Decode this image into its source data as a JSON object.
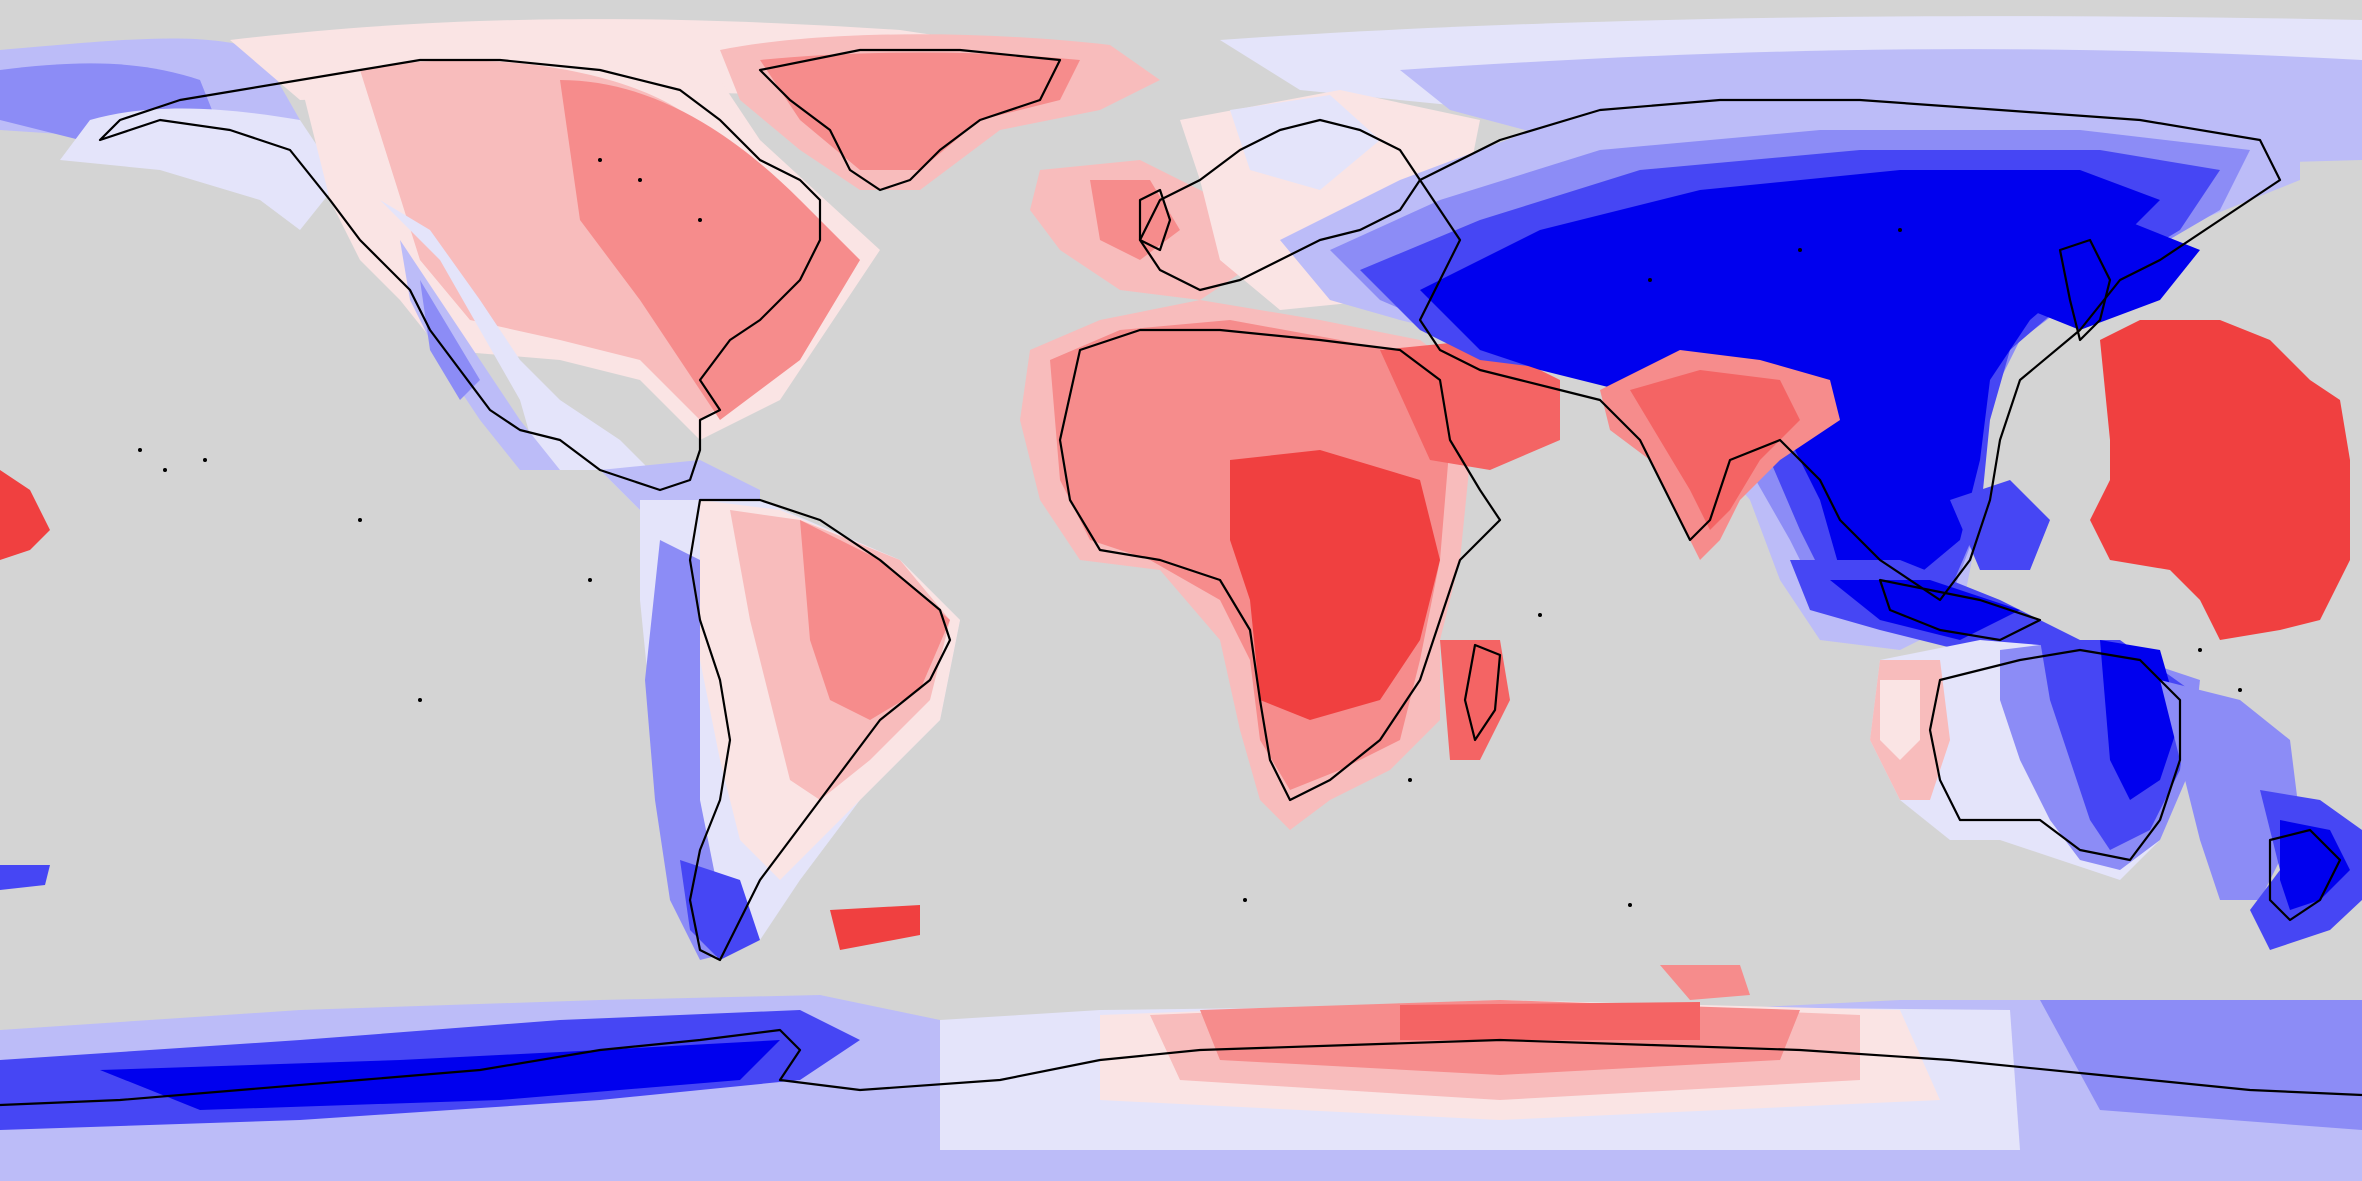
{
  "map": {
    "projection": "equirectangular",
    "background_color": "#d4d4d4",
    "coastline_color": "#000000",
    "diverging_scale": [
      "#0000ee",
      "#4646f4",
      "#8c8cf6",
      "#bcbcf8",
      "#e4e4fa",
      "#fae4e4",
      "#f8bcbc",
      "#f68c8c",
      "#f46464",
      "#f04040"
    ],
    "regions": [
      {
        "name": "north-america",
        "sign": "mixed"
      },
      {
        "name": "greenland",
        "sign": "positive"
      },
      {
        "name": "south-america",
        "sign": "mixed"
      },
      {
        "name": "africa",
        "sign": "positive"
      },
      {
        "name": "europe",
        "sign": "mixed"
      },
      {
        "name": "asia",
        "sign": "negative"
      },
      {
        "name": "india",
        "sign": "positive"
      },
      {
        "name": "australia",
        "sign": "mixed"
      },
      {
        "name": "new-zealand",
        "sign": "negative"
      },
      {
        "name": "antarctica",
        "sign": "mixed"
      },
      {
        "name": "north-pacific-block",
        "sign": "positive"
      }
    ]
  }
}
